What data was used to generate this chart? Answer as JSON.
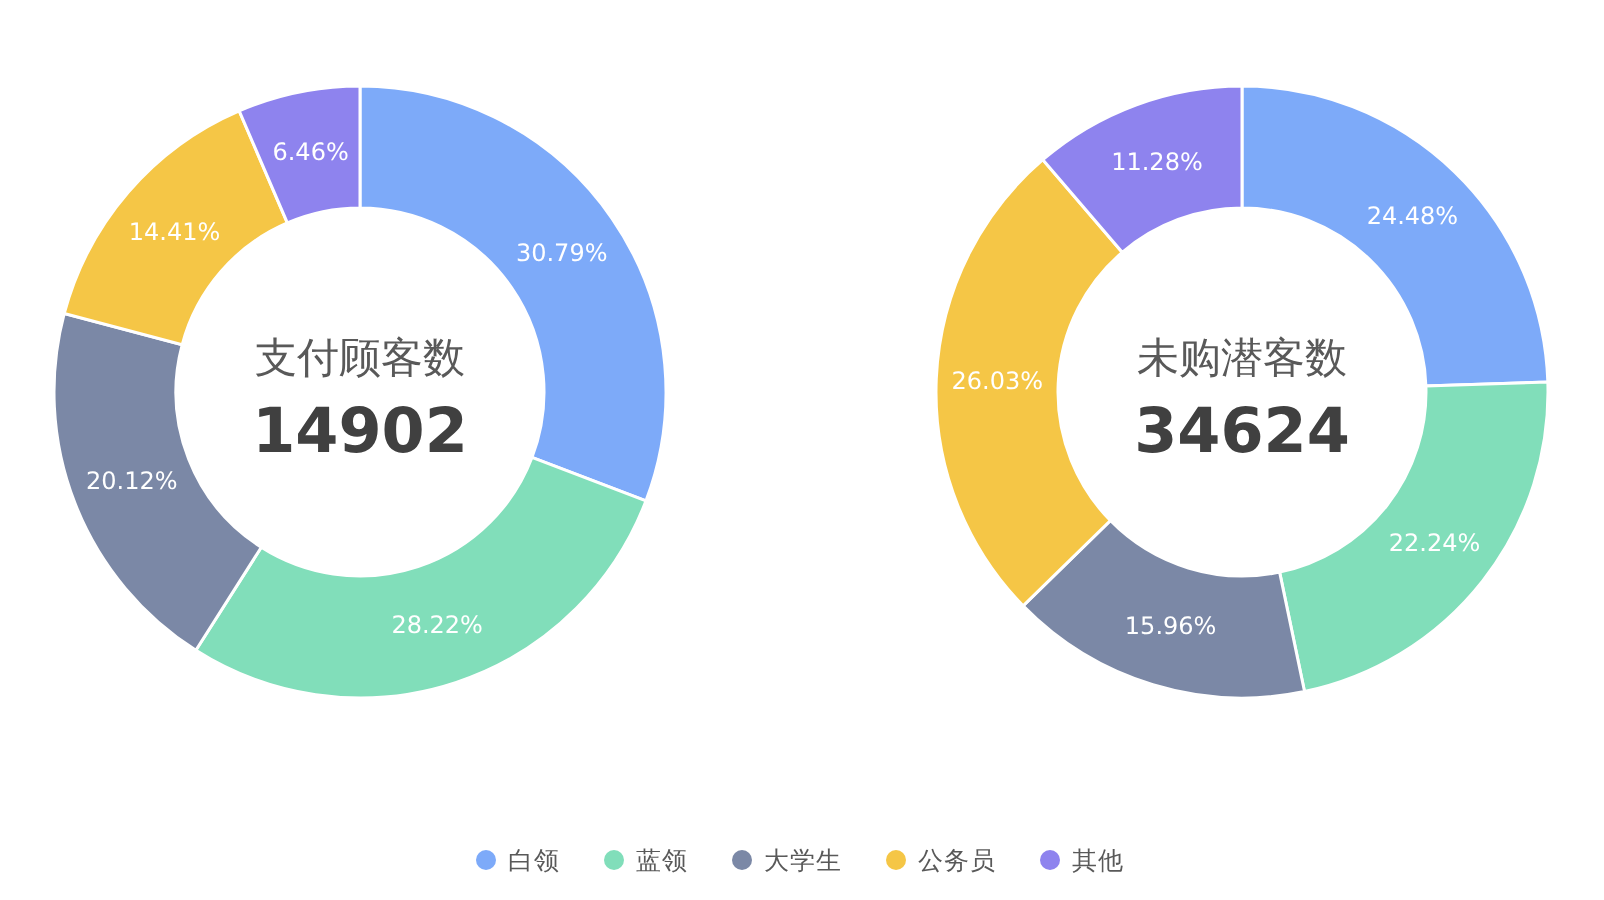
{
  "chart_data": [
    {
      "type": "donut",
      "title": "支付顾客数",
      "subtitle": "14902",
      "categories": [
        "白领",
        "蓝领",
        "大学生",
        "公务员",
        "其他"
      ],
      "values": [
        30.79,
        28.22,
        20.12,
        14.41,
        6.46
      ],
      "value_labels": [
        "30.79%",
        "28.22%",
        "20.12%",
        "14.41%",
        "6.46%"
      ],
      "colors": [
        "#7daaf9",
        "#81deba",
        "#7b88a6",
        "#f5c646",
        "#8e83ee"
      ],
      "legend": "bottom"
    },
    {
      "type": "donut",
      "title": "未购潜客数",
      "subtitle": "34624",
      "categories": [
        null,
        null,
        null,
        null,
        null
      ],
      "values": [
        24.48,
        22.24,
        15.96,
        26.03,
        11.28
      ],
      "value_labels": [
        "24.48%",
        "22.24%",
        "15.96%",
        "26.03%",
        "11.28%"
      ],
      "colors": [
        "#7daaf9",
        "#81deba",
        "#7b88a6",
        "#f5c646",
        "#8e83ee"
      ]
    }
  ]
}
